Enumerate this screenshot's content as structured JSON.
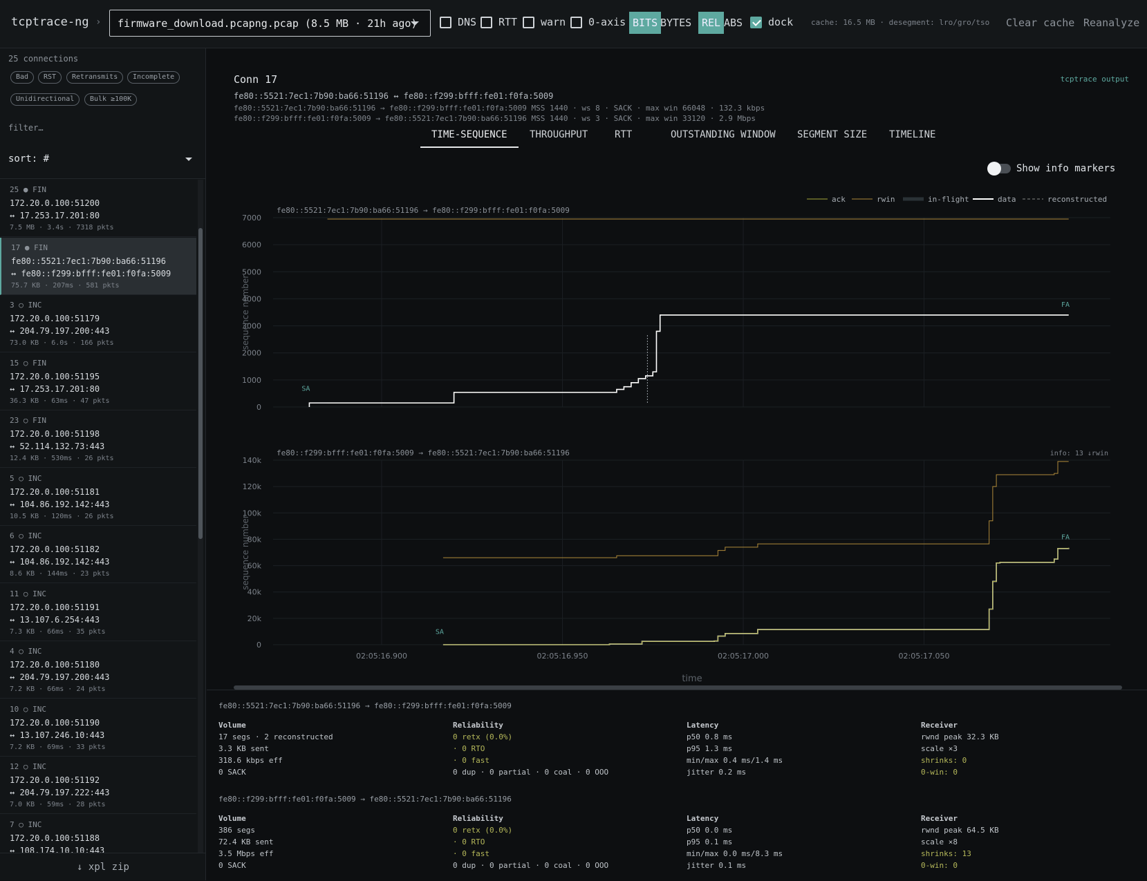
{
  "app": {
    "title": "tcptrace-ng",
    "file": "firmware_download.pcapng.pcap (8.5 MB · 21h ago)"
  },
  "toolbar": {
    "dns": "DNS",
    "rtt": "RTT",
    "warn": "warn",
    "zero_axis": "0-axis",
    "bits": "BITS",
    "bytes": "BYTES",
    "rel": "REL",
    "abs": "ABS",
    "dock": "dock",
    "cache_info": "cache: 16.5 MB · desegment: lro/gro/tso",
    "clear_cache": "Clear cache",
    "reanalyze": "Reanalyze"
  },
  "sidebar": {
    "count": "25 connections",
    "chips": [
      "Bad",
      "RST",
      "Retransmits",
      "Incomplete",
      "Unidirectional",
      "Bulk ≥100K"
    ],
    "filter_placeholder": "filter…",
    "sort": "sort: #",
    "items": [
      {
        "hdr": "25 ● FIN",
        "a": "172.20.0.100:51200",
        "b": "↔ 17.253.17.201:80",
        "m": "7.5 MB · 3.4s · 7318 pkts"
      },
      {
        "hdr": "17 ● FIN",
        "a": "fe80::5521:7ec1:7b90:ba66:51196",
        "b": "↔ fe80::f299:bfff:fe01:f0fa:5009",
        "m": "75.7 KB · 207ms · 581 pkts"
      },
      {
        "hdr": "3 ○ INC",
        "a": "172.20.0.100:51179",
        "b": "↔ 204.79.197.200:443",
        "m": "73.0 KB · 6.0s · 166 pkts"
      },
      {
        "hdr": "15 ○ FIN",
        "a": "172.20.0.100:51195",
        "b": "↔ 17.253.17.201:80",
        "m": "36.3 KB · 63ms · 47 pkts"
      },
      {
        "hdr": "23 ○ FIN",
        "a": "172.20.0.100:51198",
        "b": "↔ 52.114.132.73:443",
        "m": "12.4 KB · 530ms · 26 pkts"
      },
      {
        "hdr": "5 ○ INC",
        "a": "172.20.0.100:51181",
        "b": "↔ 104.86.192.142:443",
        "m": "10.5 KB · 120ms · 26 pkts"
      },
      {
        "hdr": "6 ○ INC",
        "a": "172.20.0.100:51182",
        "b": "↔ 104.86.192.142:443",
        "m": "8.6 KB · 144ms · 23 pkts"
      },
      {
        "hdr": "11 ○ INC",
        "a": "172.20.0.100:51191",
        "b": "↔ 13.107.6.254:443",
        "m": "7.3 KB · 66ms · 35 pkts"
      },
      {
        "hdr": "4 ○ INC",
        "a": "172.20.0.100:51180",
        "b": "↔ 204.79.197.200:443",
        "m": "7.2 KB · 66ms · 24 pkts"
      },
      {
        "hdr": "10 ○ INC",
        "a": "172.20.0.100:51190",
        "b": "↔ 13.107.246.10:443",
        "m": "7.2 KB · 69ms · 33 pkts"
      },
      {
        "hdr": "12 ○ INC",
        "a": "172.20.0.100:51192",
        "b": "↔ 204.79.197.222:443",
        "m": "7.0 KB · 59ms · 28 pkts"
      },
      {
        "hdr": "7 ○ INC",
        "a": "172.20.0.100:51188",
        "b": "↔ 108.174.10.10:443",
        "m": ""
      }
    ],
    "export": "↓ xpl zip"
  },
  "main": {
    "title": "Conn 17",
    "pair": "fe80::5521:7ec1:7b90:ba66:51196 ↔ fe80::f299:bfff:fe01:f0fa:5009",
    "line1": "fe80::5521:7ec1:7b90:ba66:51196 → fe80::f299:bfff:fe01:f0fa:5009 MSS 1440 · ws 8 · SACK · max win 66048 · 132.3 kbps",
    "line2": "fe80::f299:bfff:fe01:f0fa:5009 → fe80::5521:7ec1:7b90:ba66:51196 MSS 1440 · ws 3 · SACK · max win 33120 · 2.9 Mbps",
    "tcptrace_output": "tcptrace output",
    "tabs": [
      "TIME-SEQUENCE",
      "THROUGHPUT",
      "RTT",
      "OUTSTANDING WINDOW",
      "SEGMENT SIZE",
      "TIMELINE"
    ],
    "show_info": "Show info markers"
  },
  "chart_data": [
    {
      "type": "line",
      "title": "fe80::5521:7ec1:7b90:ba66:51196 → fe80::f299:bfff:fe01:f0fa:5009",
      "ylabel": "sequence number",
      "ylim": [
        0,
        7000
      ],
      "yticks": [
        "0",
        "1000",
        "2000",
        "3000",
        "4000",
        "5000",
        "6000",
        "7000"
      ],
      "legend": [
        "ack",
        "rwin",
        "in-flight",
        "data",
        "reconstructed"
      ],
      "markers": [
        "SA",
        "FA"
      ],
      "series": [
        {
          "name": "rwin",
          "x": [
            16.885,
            17.09
          ],
          "y": [
            6950,
            6950
          ]
        },
        {
          "name": "ack",
          "x": [
            16.885,
            16.92,
            16.92,
            16.963,
            16.965,
            16.967,
            16.969,
            16.971,
            16.973,
            16.975,
            16.976,
            16.977,
            17.09
          ],
          "y": [
            150,
            150,
            540,
            540,
            650,
            750,
            900,
            1050,
            1150,
            1300,
            2800,
            3400,
            3400
          ]
        },
        {
          "name": "data",
          "x": [
            16.88,
            16.88,
            16.92,
            16.92,
            16.963,
            16.965,
            16.967,
            16.969,
            16.971,
            16.973,
            16.975,
            16.976,
            16.977,
            17.09
          ],
          "y": [
            0,
            150,
            150,
            540,
            540,
            650,
            750,
            900,
            1050,
            1150,
            1300,
            2800,
            3400,
            3400
          ]
        }
      ]
    },
    {
      "type": "line",
      "title": "fe80::f299:bfff:fe01:f0fa:5009 → fe80::5521:7ec1:7b90:ba66:51196",
      "ylabel": "sequence number",
      "xlabel": "time",
      "info": "info: 13 ↓rwin",
      "ylim": [
        0,
        140000
      ],
      "yticks": [
        "0",
        "20k",
        "40k",
        "60k",
        "80k",
        "100k",
        "120k",
        "140k"
      ],
      "xticks": [
        "02:05:16.900",
        "02:05:16.950",
        "02:05:17.000",
        "02:05:17.050"
      ],
      "markers": [
        "SA",
        "FA"
      ],
      "series": [
        {
          "name": "rwin",
          "x": [
            16.917,
            16.964,
            16.965,
            16.992,
            16.993,
            16.995,
            17.003,
            17.004,
            17.067,
            17.068,
            17.069,
            17.07,
            17.086,
            17.087,
            17.09
          ],
          "y": [
            66000,
            66000,
            67500,
            67500,
            71500,
            74000,
            74000,
            76500,
            76500,
            94000,
            120000,
            129000,
            130000,
            139000,
            139000
          ]
        },
        {
          "name": "data",
          "x": [
            16.917,
            16.963,
            16.972,
            16.992,
            16.993,
            16.995,
            17.003,
            17.004,
            17.067,
            17.068,
            17.069,
            17.07,
            17.071,
            17.086,
            17.087,
            17.09
          ],
          "y": [
            0,
            500,
            2500,
            2800,
            6500,
            8500,
            8500,
            11500,
            11500,
            27000,
            48000,
            62000,
            62500,
            65000,
            73000,
            73500
          ]
        },
        {
          "name": "ack",
          "x": [
            16.917,
            16.963,
            16.972,
            16.992,
            16.993,
            16.995,
            17.003,
            17.004,
            17.067,
            17.068,
            17.069,
            17.07,
            17.071,
            17.086,
            17.087,
            17.09
          ],
          "y": [
            0,
            500,
            2500,
            2800,
            6500,
            8500,
            8500,
            11500,
            11500,
            27000,
            48000,
            62000,
            62500,
            65000,
            73000,
            73500
          ]
        }
      ]
    }
  ],
  "stats": [
    {
      "dir": "fe80::5521:7ec1:7b90:ba66:51196 → fe80::f299:bfff:fe01:f0fa:5009",
      "volume": [
        "17 segs · 2 reconstructed",
        "3.3 KB sent",
        "318.6 kbps eff",
        "0 SACK"
      ],
      "reliability": [
        "0 retx (0.0%)",
        "· 0 RTO",
        "· 0 fast",
        "0 dup · 0 partial · 0 coal · 0 OOO"
      ],
      "latency": [
        "p50 0.8 ms",
        "p95 1.3 ms",
        "min/max 0.4 ms/1.4 ms",
        "jitter 0.2 ms"
      ],
      "receiver": [
        "rwnd peak 32.3 KB",
        "scale ×3",
        "shrinks: 0",
        "0-win: 0"
      ]
    },
    {
      "dir": "fe80::f299:bfff:fe01:f0fa:5009 → fe80::5521:7ec1:7b90:ba66:51196",
      "volume": [
        "386 segs",
        "72.4 KB sent",
        "3.5 Mbps eff",
        "0 SACK"
      ],
      "reliability": [
        "0 retx (0.0%)",
        "· 0 RTO",
        "· 0 fast",
        "0 dup · 0 partial · 0 coal · 0 OOO"
      ],
      "latency": [
        "p50 0.0 ms",
        "p95 0.1 ms",
        "min/max 0.0 ms/8.3 ms",
        "jitter 0.1 ms"
      ],
      "receiver": [
        "rwnd peak 64.5 KB",
        "scale ×8",
        "shrinks: 13",
        "0-win: 0"
      ]
    }
  ],
  "stat_headers": {
    "volume": "Volume",
    "reliability": "Reliability",
    "latency": "Latency",
    "receiver": "Receiver"
  },
  "colors": {
    "accent": "#5ea9a0",
    "ack": "#a8a83a",
    "rwin": "#b08a3a",
    "data": "#ffffff"
  }
}
